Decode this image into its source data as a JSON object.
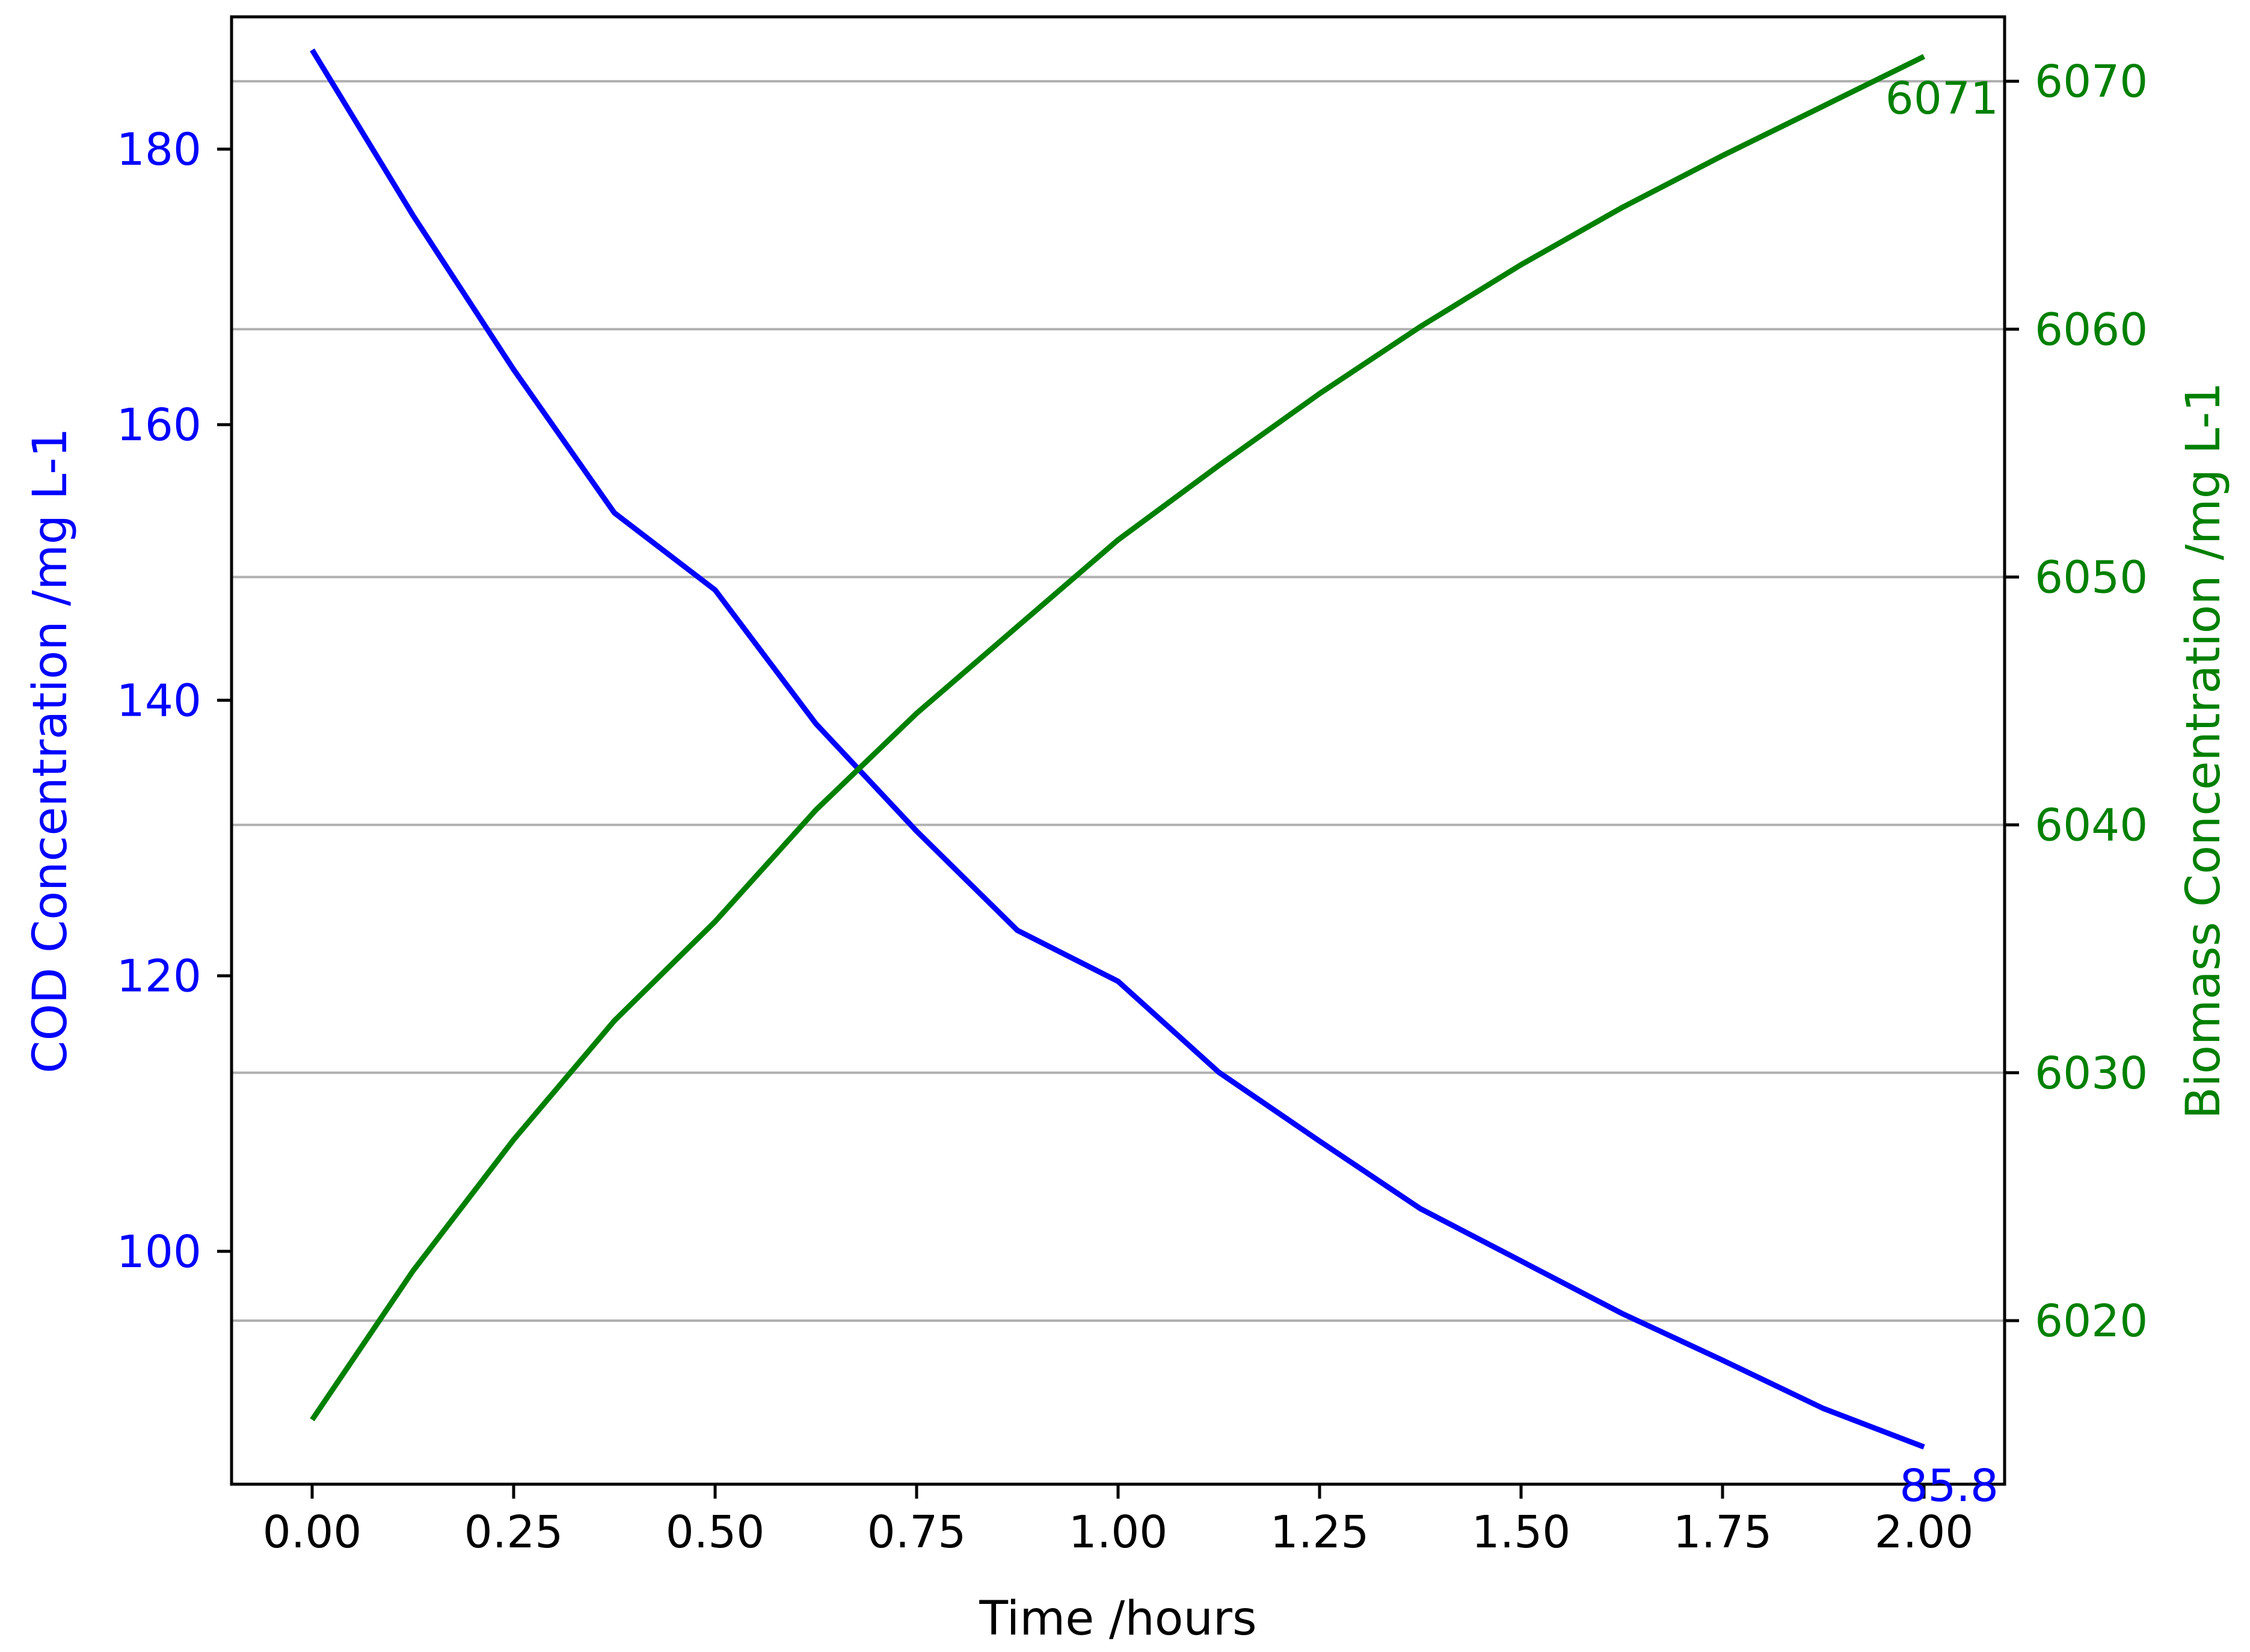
{
  "chart_data": {
    "type": "line",
    "xlabel": "Time /hours",
    "ylabel_left": "COD Concentration /mg L-1",
    "ylabel_right": "Biomass Concentration /mg L-1",
    "xlim": [
      -0.1,
      2.1
    ],
    "ylim_left": [
      83.1,
      189.6
    ],
    "ylim_right": [
      6013.4,
      6072.6
    ],
    "xticks": [
      "0.00",
      "0.25",
      "0.50",
      "0.75",
      "1.00",
      "1.25",
      "1.50",
      "1.75",
      "2.00"
    ],
    "yticks_left": [
      "100",
      "120",
      "140",
      "160",
      "180"
    ],
    "yticks_right": [
      "6020",
      "6030",
      "6040",
      "6050",
      "6060",
      "6070"
    ],
    "grid": "horizontal lines at right-axis ticks",
    "colors": {
      "cod": "#0000ff",
      "biomass": "#008000",
      "grid": "#b0b0b0",
      "axes": "#000000"
    },
    "series": [
      {
        "axis": "left",
        "color": "#0000ff",
        "x": [
          0.0,
          0.125,
          0.25,
          0.375,
          0.5,
          0.625,
          0.75,
          0.875,
          1.0,
          1.125,
          1.25,
          1.375,
          1.5,
          1.625,
          1.75,
          1.875,
          2.0
        ],
        "values": [
          187.2,
          175.2,
          164.0,
          153.6,
          148.0,
          138.3,
          130.5,
          123.3,
          119.6,
          113.0,
          108.0,
          103.1,
          99.3,
          95.5,
          92.1,
          88.6,
          85.8
        ]
      },
      {
        "axis": "right",
        "color": "#008000",
        "x": [
          0.0,
          0.125,
          0.25,
          0.375,
          0.5,
          0.625,
          0.75,
          0.875,
          1.0,
          1.125,
          1.25,
          1.375,
          1.5,
          1.625,
          1.75,
          1.875,
          2.0
        ],
        "values": [
          6016.0,
          6022.0,
          6027.3,
          6032.1,
          6036.1,
          6040.6,
          6044.5,
          6048.0,
          6051.5,
          6054.5,
          6057.4,
          6060.1,
          6062.6,
          6064.9,
          6067.0,
          6069.0,
          6071.0
        ]
      }
    ],
    "end_labels": [
      {
        "text": "85.8",
        "color": "#0000ff",
        "x": 2.0,
        "value": 85.8,
        "axis": "left"
      },
      {
        "text": "6071",
        "color": "#008000",
        "x": 2.0,
        "value": 6071.0,
        "axis": "right"
      }
    ]
  }
}
